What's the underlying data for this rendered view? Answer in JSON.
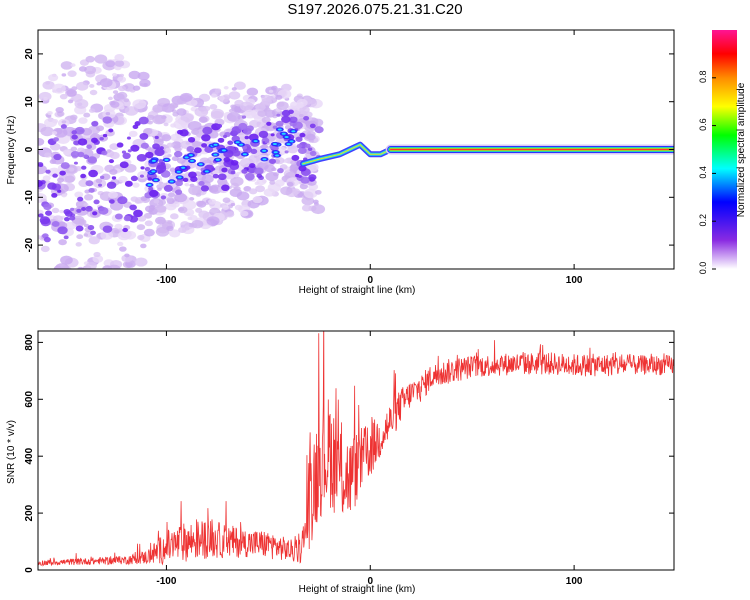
{
  "title": "S197.2026.075.21.31.C20",
  "chart_data": [
    {
      "type": "heatmap",
      "name": "spectrogram",
      "xlabel": "Height of straight line (km)",
      "ylabel": "Frequency (Hz)",
      "xlim": [
        -163,
        149
      ],
      "ylim": [
        -25,
        25
      ],
      "xticks": [
        -100,
        0,
        100
      ],
      "yticks": [
        -20,
        -10,
        0,
        10,
        20
      ],
      "xtick_labels": [
        "-100",
        "0",
        "100"
      ],
      "ytick_labels": [
        "-20",
        "-10",
        "0",
        "10",
        "20"
      ],
      "carrier": {
        "x_start": 10,
        "x_end": 149,
        "frequency": 0
      },
      "noisy_region": {
        "x_start": -163,
        "x_end": -25,
        "frequency_center_trend": [
          [
            -160,
            -7
          ],
          [
            -100,
            -4
          ],
          [
            -40,
            2
          ],
          [
            -25,
            -2
          ]
        ]
      },
      "transition_trace": [
        [
          -33,
          -3
        ],
        [
          -25,
          -2
        ],
        [
          -15,
          -1
        ],
        [
          -10,
          0
        ],
        [
          -5,
          1
        ],
        [
          0,
          -1
        ],
        [
          5,
          -1
        ],
        [
          10,
          0
        ]
      ],
      "colorbar": {
        "label": "Normalized spectral amplitude",
        "range": [
          0,
          1
        ],
        "ticks": [
          0.0,
          0.2,
          0.4,
          0.6,
          0.8
        ],
        "tick_labels": [
          "0.0",
          "0.2",
          "0.4",
          "0.6",
          "0.8"
        ],
        "colors": [
          "#ffffff",
          "#8a2be2",
          "#0000ff",
          "#00ffff",
          "#00ff00",
          "#ffff00",
          "#ff8c00",
          "#ff0000",
          "#ff1493"
        ]
      }
    },
    {
      "type": "line",
      "name": "snr",
      "xlabel": "Height of straight line (km)",
      "ylabel": "SNR (10 * v/v)",
      "xlim": [
        -163,
        149
      ],
      "ylim": [
        0,
        840
      ],
      "xticks": [
        -100,
        0,
        100
      ],
      "yticks": [
        0,
        200,
        400,
        600,
        800
      ],
      "xtick_labels": [
        "-100",
        "0",
        "100"
      ],
      "ytick_labels": [
        "0",
        "200",
        "400",
        "600",
        "800"
      ],
      "color": "#ee3333",
      "x": [
        -163,
        -140,
        -120,
        -110,
        -100,
        -90,
        -80,
        -70,
        -60,
        -50,
        -40,
        -35,
        -32,
        -30,
        -25,
        -20,
        -15,
        -10,
        -5,
        0,
        5,
        10,
        15,
        20,
        25,
        30,
        40,
        50,
        60,
        70,
        80,
        90,
        100,
        110,
        120,
        130,
        140,
        149
      ],
      "y": [
        25,
        30,
        35,
        45,
        80,
        100,
        110,
        100,
        95,
        90,
        70,
        60,
        120,
        250,
        380,
        420,
        350,
        320,
        380,
        420,
        470,
        520,
        580,
        620,
        640,
        680,
        700,
        715,
        720,
        725,
        725,
        725,
        720,
        720,
        720,
        720,
        720,
        720
      ],
      "noise_amplitude": [
        10,
        12,
        15,
        25,
        60,
        70,
        70,
        60,
        50,
        50,
        40,
        40,
        80,
        180,
        200,
        200,
        180,
        150,
        120,
        100,
        80,
        70,
        60,
        50,
        50,
        45,
        45,
        40,
        40,
        40,
        40,
        40,
        40,
        40,
        40,
        35,
        35,
        35
      ]
    }
  ]
}
